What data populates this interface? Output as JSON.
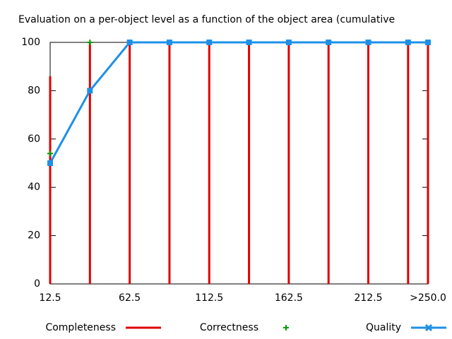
{
  "chart_data": {
    "type": "line",
    "title": "Evaluation on a per-object level as a function of the object area (cumulative",
    "x": [
      12.5,
      37.5,
      62.5,
      87.5,
      112.5,
      137.5,
      162.5,
      187.5,
      212.5,
      237.5,
      250
    ],
    "xlim": [
      12.5,
      250
    ],
    "xticks": [
      12.5,
      62.5,
      112.5,
      162.5,
      212.5,
      {
        "value": 250,
        "label": ">250.0"
      }
    ],
    "ylim": [
      0,
      100
    ],
    "yticks": [
      0,
      20,
      40,
      60,
      80,
      100
    ],
    "series": [
      {
        "name": "Completeness",
        "color": "#e00000",
        "style": "impulses",
        "values": [
          86,
          100,
          100,
          100,
          100,
          100,
          100,
          100,
          100,
          100,
          100
        ]
      },
      {
        "name": "Correctness",
        "color": "#00a000",
        "style": "points",
        "values": [
          54,
          100,
          100,
          100,
          100,
          100,
          100,
          100,
          100,
          100,
          100
        ]
      },
      {
        "name": "Quality",
        "color": "#1e90e8",
        "style": "linespoints",
        "values": [
          50,
          80,
          100,
          100,
          100,
          100,
          100,
          100,
          100,
          100,
          100
        ]
      }
    ]
  }
}
